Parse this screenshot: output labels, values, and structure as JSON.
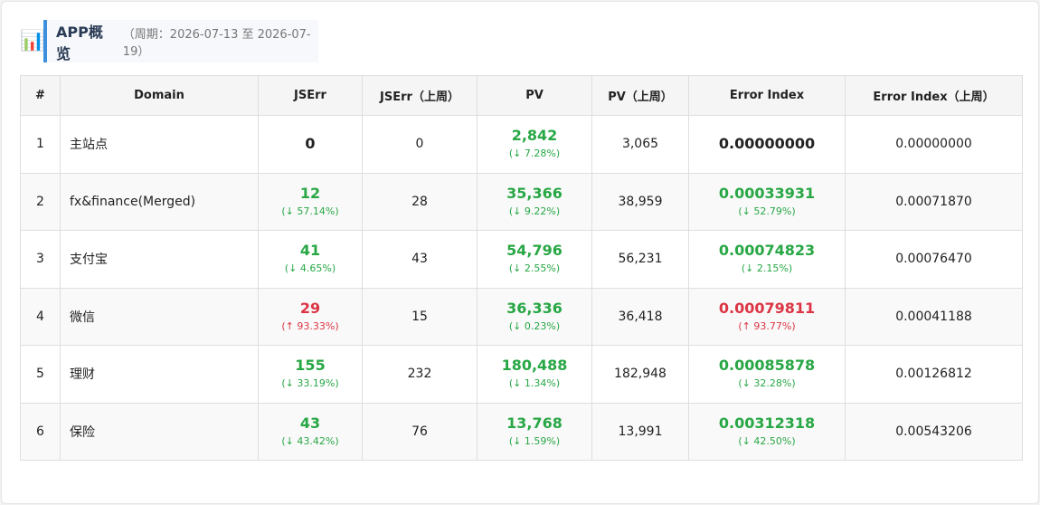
{
  "header": {
    "icon": "chart-icon",
    "title": "APP概览",
    "period": "（周期：2026-07-13 至 2026-07-19）"
  },
  "colors": {
    "good": "#28a745",
    "bad": "#dc3545",
    "accent": "#3b8fdd"
  },
  "table": {
    "columns": [
      "#",
      "Domain",
      "JSErr",
      "JSErr（上周）",
      "PV",
      "PV（上周）",
      "Error Index",
      "Error Index（上周）"
    ],
    "rows": [
      {
        "idx": "1",
        "domain": "主站点",
        "jserr": "0",
        "jserr_chg": "",
        "jserr_status": "neutral",
        "jserr_prev": "0",
        "pv": "2,842",
        "pv_chg": "(↓ 7.28%)",
        "pv_status": "good",
        "pv_prev": "3,065",
        "ei": "0.00000000",
        "ei_chg": "",
        "ei_status": "neutral",
        "ei_prev": "0.00000000"
      },
      {
        "idx": "2",
        "domain": "fx&finance(Merged)",
        "jserr": "12",
        "jserr_chg": "(↓ 57.14%)",
        "jserr_status": "good",
        "jserr_prev": "28",
        "pv": "35,366",
        "pv_chg": "(↓ 9.22%)",
        "pv_status": "good",
        "pv_prev": "38,959",
        "ei": "0.00033931",
        "ei_chg": "(↓ 52.79%)",
        "ei_status": "good",
        "ei_prev": "0.00071870"
      },
      {
        "idx": "3",
        "domain": "支付宝",
        "jserr": "41",
        "jserr_chg": "(↓ 4.65%)",
        "jserr_status": "good",
        "jserr_prev": "43",
        "pv": "54,796",
        "pv_chg": "(↓ 2.55%)",
        "pv_status": "good",
        "pv_prev": "56,231",
        "ei": "0.00074823",
        "ei_chg": "(↓ 2.15%)",
        "ei_status": "good",
        "ei_prev": "0.00076470"
      },
      {
        "idx": "4",
        "domain": "微信",
        "jserr": "29",
        "jserr_chg": "(↑ 93.33%)",
        "jserr_status": "bad",
        "jserr_prev": "15",
        "pv": "36,336",
        "pv_chg": "(↓ 0.23%)",
        "pv_status": "good",
        "pv_prev": "36,418",
        "ei": "0.00079811",
        "ei_chg": "(↑ 93.77%)",
        "ei_status": "bad",
        "ei_prev": "0.00041188"
      },
      {
        "idx": "5",
        "domain": "理财",
        "jserr": "155",
        "jserr_chg": "(↓ 33.19%)",
        "jserr_status": "good",
        "jserr_prev": "232",
        "pv": "180,488",
        "pv_chg": "(↓ 1.34%)",
        "pv_status": "good",
        "pv_prev": "182,948",
        "ei": "0.00085878",
        "ei_chg": "(↓ 32.28%)",
        "ei_status": "good",
        "ei_prev": "0.00126812"
      },
      {
        "idx": "6",
        "domain": "保险",
        "jserr": "43",
        "jserr_chg": "(↓ 43.42%)",
        "jserr_status": "good",
        "jserr_prev": "76",
        "pv": "13,768",
        "pv_chg": "(↓ 1.59%)",
        "pv_status": "good",
        "pv_prev": "13,991",
        "ei": "0.00312318",
        "ei_chg": "(↓ 42.50%)",
        "ei_status": "good",
        "ei_prev": "0.00543206"
      }
    ]
  }
}
